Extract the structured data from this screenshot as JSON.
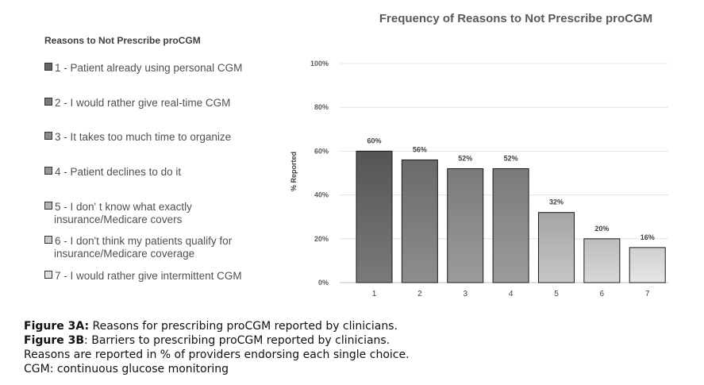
{
  "legend": {
    "title": "Reasons to Not Prescribe proCGM",
    "items": [
      {
        "line1": "1 - Patient already using personal CGM",
        "line2": "",
        "color": "#666666"
      },
      {
        "line1": "2 - I would rather give real-time CGM",
        "line2": "",
        "color": "#7a7a7a"
      },
      {
        "line1": "3 - It takes too much time to organize",
        "line2": "",
        "color": "#8c8c8c"
      },
      {
        "line1": "4 - Patient declines to do it",
        "line2": "",
        "color": "#969696"
      },
      {
        "line1": "5 - I don' t know what exactly",
        "line2": "insurance/Medicare covers",
        "color": "#b4b4b4"
      },
      {
        "line1": "6 - I don't think my patients qualify for",
        "line2": "insurance/Medicare coverage",
        "color": "#c8c8c8"
      },
      {
        "line1": "7 - I would rather give intermittent CGM",
        "line2": "",
        "color": "#dedede"
      }
    ]
  },
  "chart_data": {
    "type": "bar",
    "title": "Frequency of Reasons to Not Prescribe proCGM",
    "xlabel": "",
    "ylabel": "% Reported",
    "categories": [
      "1",
      "2",
      "3",
      "4",
      "5",
      "6",
      "7"
    ],
    "values": [
      60,
      56,
      52,
      52,
      32,
      20,
      16
    ],
    "data_labels": [
      "60%",
      "56%",
      "52%",
      "52%",
      "32%",
      "20%",
      "16%"
    ],
    "ylim": [
      0,
      100
    ],
    "yticks": [
      0,
      20,
      40,
      60,
      80,
      100
    ],
    "ytick_labels": [
      "0%",
      "20%",
      "40%",
      "60%",
      "80%",
      "100%"
    ],
    "grid": true,
    "bar_colors": [
      [
        "#555555",
        "#7a7a7a"
      ],
      [
        "#6a6a6a",
        "#8e8e8e"
      ],
      [
        "#7a7a7a",
        "#9c9c9c"
      ],
      [
        "#7a7a7a",
        "#9c9c9c"
      ],
      [
        "#a4a4a4",
        "#c6c6c6"
      ],
      [
        "#bcbcbc",
        "#d8d8d8"
      ],
      [
        "#cfcfcf",
        "#e6e6e6"
      ]
    ]
  },
  "caption": {
    "line1_bold": "Figure 3A:",
    "line1_rest": " Reasons for prescribing proCGM reported by clinicians.",
    "line2_bold": "Figure 3B",
    "line2_rest": ": Barriers to prescribing proCGM reported by clinicians.",
    "line3": "Reasons are reported in % of providers endorsing each single choice.",
    "line4": "CGM: continuous glucose monitoring"
  }
}
